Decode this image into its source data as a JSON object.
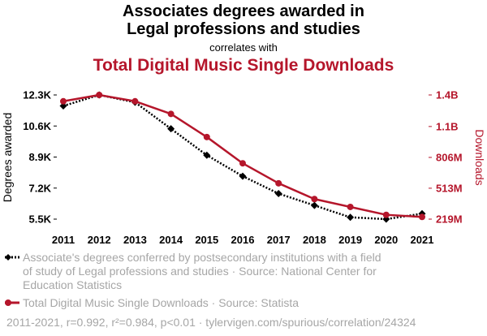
{
  "header": {
    "title_line1": "Associates degrees awarded in",
    "title_line2": "Legal professions and studies",
    "correlates": "correlates with",
    "title2": "Total Digital Music Single Downloads"
  },
  "colors": {
    "series1": "#000000",
    "series2": "#b5162b",
    "axis_text": "#000000",
    "legend_text": "#a6a6a6"
  },
  "chart_data": {
    "type": "line",
    "x": [
      2011,
      2012,
      2013,
      2014,
      2015,
      2016,
      2017,
      2018,
      2019,
      2020,
      2021
    ],
    "xlabel": "",
    "y_left": {
      "label": "Degrees awarded",
      "ticks": [
        "12.3K",
        "10.6K",
        "8.9K",
        "7.2K",
        "5.5K"
      ],
      "tick_values": [
        12300,
        10600,
        8900,
        7200,
        5500
      ],
      "range": [
        5500,
        12300
      ]
    },
    "y_right": {
      "label": "Downloads",
      "ticks": [
        "1.4B",
        "1.1B",
        "806M",
        "513M",
        "219M"
      ],
      "tick_values": [
        1400000000,
        1100000000,
        806000000,
        513000000,
        219000000
      ],
      "range": [
        219000000,
        1400000000
      ]
    },
    "grid": false,
    "series": [
      {
        "name": "Associate's degrees conferred by postsecondary institutions with a field of study of Legal professions and studies",
        "axis": "left",
        "style": "dotted",
        "marker": "diamond",
        "color": "#000000",
        "values": [
          11700,
          12300,
          11900,
          10450,
          9000,
          7850,
          6900,
          6250,
          5600,
          5500,
          5800
        ]
      },
      {
        "name": "Total Digital Music Single Downloads",
        "axis": "right",
        "style": "solid",
        "marker": "circle",
        "color": "#b5162b",
        "values": [
          1340000000,
          1400000000,
          1340000000,
          1220000000,
          1000000000,
          750000000,
          560000000,
          410000000,
          335000000,
          260000000,
          240000000
        ]
      }
    ]
  },
  "legend": {
    "series1_text": "Associate's degrees conferred by postsecondary institutions with a field of study of Legal professions and studies · Source: National Center for Education Statistics",
    "series2_text": "Total Digital Music Single Downloads · Source: Statista"
  },
  "footer": "2011-2021, r=0.992, r²=0.984, p<0.01 · tylervigen.com/spurious/correlation/24324"
}
